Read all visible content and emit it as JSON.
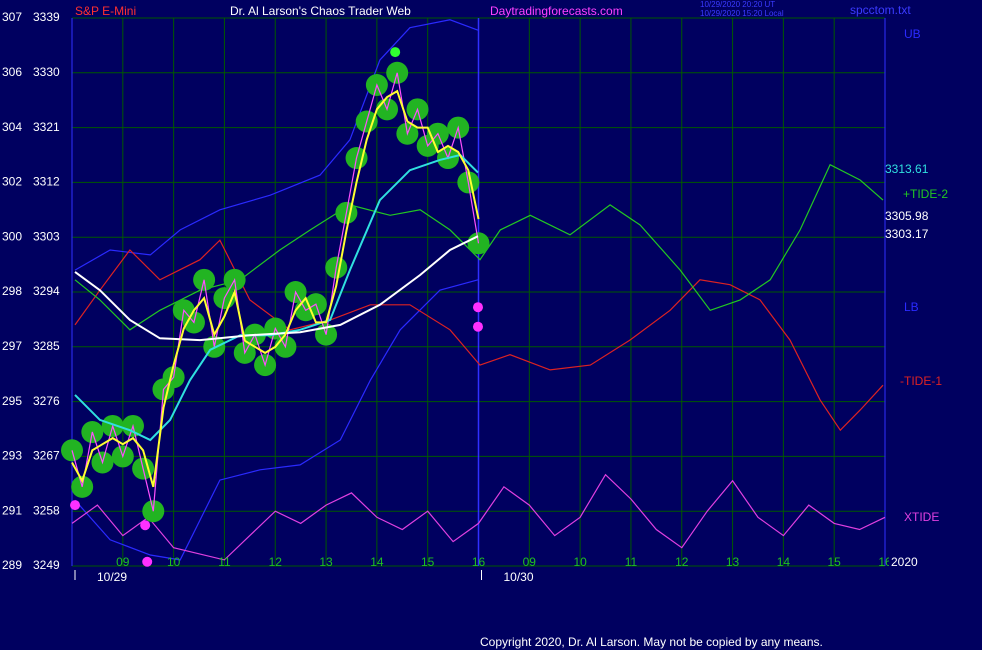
{
  "chart_data": {
    "type": "line",
    "instrument": "S&P E-Mini",
    "title": "Dr. Al Larson's Chaos Trader Web",
    "site": "Daytradingforecasts.com",
    "timestamp_lines": [
      "10/29/2020 20:20 UT",
      "10/29/2020 15:20 Local"
    ],
    "file": "spcctom.txt",
    "year": "2020",
    "copyright": "Copyright 2020, Dr. Al Larson. May not be copied by any means.",
    "xlim": [
      0,
      16
    ],
    "ylim": [
      3249,
      3339
    ],
    "yticks": [
      3249,
      3258,
      3267,
      3276,
      3285,
      3294,
      3303,
      3312,
      3321,
      3330,
      3339
    ],
    "left_scale": [
      289,
      291,
      293,
      295,
      297,
      298,
      300,
      302,
      304,
      306,
      307
    ],
    "xticks": [
      {
        "value": 1,
        "label": "09"
      },
      {
        "value": 2,
        "label": "10"
      },
      {
        "value": 3,
        "label": "11"
      },
      {
        "value": 4,
        "label": "12"
      },
      {
        "value": 5,
        "label": "13"
      },
      {
        "value": 6,
        "label": "14"
      },
      {
        "value": 7,
        "label": "15"
      },
      {
        "value": 8,
        "label": "16"
      },
      {
        "value": 9,
        "label": "09"
      },
      {
        "value": 10,
        "label": "10"
      },
      {
        "value": 11,
        "label": "11"
      },
      {
        "value": 12,
        "label": "12"
      },
      {
        "value": 13,
        "label": "13"
      },
      {
        "value": 14,
        "label": "14"
      },
      {
        "value": 15,
        "label": "15"
      },
      {
        "value": 16,
        "label": "16"
      }
    ],
    "dates": [
      {
        "value": 0,
        "label": "10/29"
      },
      {
        "value": 8,
        "label": "10/30"
      }
    ],
    "now_x": 8,
    "grid": true,
    "series": [
      {
        "name": "UB",
        "color": "#2a2aff",
        "x": [
          0.06,
          0.75,
          1.54,
          2.13,
          2.91,
          3.9,
          4.88,
          5.47,
          6.06,
          6.65,
          7.44,
          7.99
        ],
        "values": [
          3297.6,
          3300.9,
          3300.1,
          3304.2,
          3307.5,
          3309.9,
          3313.2,
          3319.0,
          3332.1,
          3337.4,
          3338.7,
          3337.0
        ]
      },
      {
        "name": "LB",
        "color": "#2a2aff",
        "x": [
          0.06,
          0.75,
          1.54,
          2.13,
          2.91,
          3.7,
          4.49,
          5.28,
          5.87,
          6.46,
          7.24,
          7.99
        ],
        "values": [
          3259.8,
          3253.3,
          3250.8,
          3250.0,
          3263.1,
          3264.8,
          3265.6,
          3269.7,
          3279.5,
          3287.8,
          3294.3,
          3296.0
        ]
      },
      {
        "name": "+TIDE-2",
        "color": "#22c822",
        "x": [
          0.06,
          0.55,
          1.14,
          1.73,
          2.52,
          3.31,
          4.09,
          4.69,
          5.47,
          6.26,
          6.85,
          7.44,
          8.03,
          8.43,
          9.02,
          9.8,
          10.59,
          11.18,
          11.97,
          12.56,
          13.15,
          13.74,
          14.33,
          14.92,
          15.51,
          15.96
        ],
        "values": [
          3296.0,
          3292.7,
          3287.8,
          3291.0,
          3294.3,
          3296.0,
          3300.9,
          3304.2,
          3308.3,
          3306.6,
          3307.5,
          3304.2,
          3299.3,
          3304.2,
          3306.6,
          3303.4,
          3308.3,
          3305.0,
          3297.6,
          3291.0,
          3292.7,
          3296.0,
          3304.2,
          3314.9,
          3312.4,
          3309.1
        ]
      },
      {
        "name": "-TIDE-1",
        "color": "#dd2222",
        "x": [
          0.06,
          0.55,
          1.14,
          1.73,
          2.52,
          2.91,
          3.5,
          4.29,
          5.08,
          5.87,
          6.65,
          7.44,
          8.03,
          8.62,
          9.41,
          10.2,
          10.98,
          11.77,
          12.36,
          12.95,
          13.54,
          14.13,
          14.72,
          15.12,
          15.51,
          15.96
        ],
        "values": [
          3288.6,
          3294.3,
          3300.9,
          3296.0,
          3299.3,
          3302.5,
          3292.7,
          3287.8,
          3289.4,
          3291.9,
          3291.9,
          3287.8,
          3282.0,
          3283.7,
          3281.2,
          3282.0,
          3286.1,
          3291.0,
          3296.0,
          3295.2,
          3292.7,
          3286.1,
          3276.3,
          3271.3,
          3274.6,
          3278.7
        ]
      },
      {
        "name": "XTIDE",
        "color": "#e040e0",
        "x": [
          0,
          0.5,
          1,
          1.5,
          2,
          2.5,
          3,
          3.5,
          4,
          4.5,
          5,
          5.5,
          6,
          6.5,
          7,
          7.5,
          8,
          8.5,
          9,
          9.5,
          10,
          10.5,
          11,
          11.5,
          12,
          12.5,
          13,
          13.5,
          14,
          14.5,
          15,
          15.5,
          16
        ],
        "values": [
          3256,
          3259,
          3254,
          3257,
          3252,
          3251,
          3250,
          3254,
          3258,
          3256,
          3259,
          3261,
          3257,
          3255,
          3258,
          3253,
          3256,
          3262,
          3259,
          3254,
          3257,
          3264,
          3260,
          3255,
          3252,
          3258,
          3263,
          3257,
          3254,
          3259,
          3256,
          3255,
          3257
        ]
      },
      {
        "color": "#ff50ff",
        "halo": "#22b422",
        "x": [
          0,
          0.2,
          0.4,
          0.6,
          0.8,
          1,
          1.2,
          1.4,
          1.6,
          1.8,
          2,
          2.2,
          2.4,
          2.6,
          2.8,
          3,
          3.2,
          3.4,
          3.6,
          3.8,
          4,
          4.2,
          4.4,
          4.6,
          4.8,
          5,
          5.2,
          5.4,
          5.6,
          5.8,
          6,
          6.2,
          6.4,
          6.6,
          6.8,
          7,
          7.2,
          7.4,
          7.6,
          7.8,
          8
        ],
        "values": [
          3268,
          3262,
          3271,
          3266,
          3272,
          3267,
          3272,
          3265,
          3258,
          3278,
          3280,
          3291,
          3289,
          3296,
          3285,
          3293,
          3296,
          3284,
          3287,
          3282,
          3288,
          3285,
          3294,
          3291,
          3292,
          3287,
          3298,
          3307,
          3316,
          3322,
          3328,
          3324,
          3330,
          3320,
          3324,
          3318,
          3320,
          3316,
          3321,
          3312,
          3302
        ]
      },
      {
        "color": "#30e0e0",
        "end_label": true,
        "x": [
          0.06,
          0.55,
          1.14,
          1.54,
          1.93,
          2.32,
          2.72,
          3.31,
          3.9,
          4.49,
          5.08,
          5.47,
          6.06,
          6.65,
          7.24,
          7.64,
          7.99
        ],
        "values": [
          3277.1,
          3273.0,
          3271.3,
          3269.7,
          3273.0,
          3279.5,
          3284.5,
          3286.9,
          3286.9,
          3287.8,
          3289.4,
          3297.6,
          3309.1,
          3314.0,
          3315.7,
          3316.5,
          3313.61
        ]
      },
      {
        "color": "#ffffff",
        "end_label": true,
        "x": [
          0.06,
          0.55,
          1.14,
          1.73,
          2.52,
          3.5,
          4.49,
          5.28,
          6.06,
          6.85,
          7.44,
          7.99
        ],
        "values": [
          3297.3,
          3294.3,
          3289.4,
          3286.4,
          3286.1,
          3286.9,
          3287.4,
          3288.6,
          3291.9,
          3296.8,
          3300.9,
          3303.17
        ]
      },
      {
        "color": "#ffff30",
        "end_label": true,
        "x": [
          0,
          0.2,
          0.4,
          0.6,
          0.8,
          1,
          1.2,
          1.4,
          1.6,
          1.8,
          2,
          2.2,
          2.4,
          2.6,
          2.8,
          3,
          3.2,
          3.4,
          3.6,
          3.8,
          4,
          4.2,
          4.4,
          4.6,
          4.8,
          5,
          5.2,
          5.4,
          5.6,
          5.8,
          6,
          6.2,
          6.4,
          6.6,
          6.8,
          7,
          7.2,
          7.4,
          7.6,
          7.8,
          8
        ],
        "values": [
          3266,
          3263,
          3268,
          3269,
          3270,
          3269,
          3270,
          3268,
          3262,
          3275,
          3282,
          3288,
          3291,
          3293,
          3287,
          3290,
          3294,
          3286,
          3285,
          3284,
          3285,
          3287,
          3291,
          3293,
          3289,
          3289,
          3295,
          3304,
          3312,
          3319,
          3324,
          3326,
          3327,
          3322,
          3321,
          3321,
          3317,
          3318,
          3317,
          3314,
          3305.98
        ]
      }
    ],
    "markers": {
      "x": [
        0.06,
        1.44,
        1.48,
        7.99,
        7.99,
        6.36
      ],
      "values": [
        3259.0,
        3255.7,
        3249.7,
        3291.5,
        3288.3,
        3333.4
      ],
      "colors": [
        "#ff30ff",
        "#ff30ff",
        "#ff30ff",
        "#ff30ff",
        "#ff30ff",
        "#30ff30"
      ]
    }
  }
}
